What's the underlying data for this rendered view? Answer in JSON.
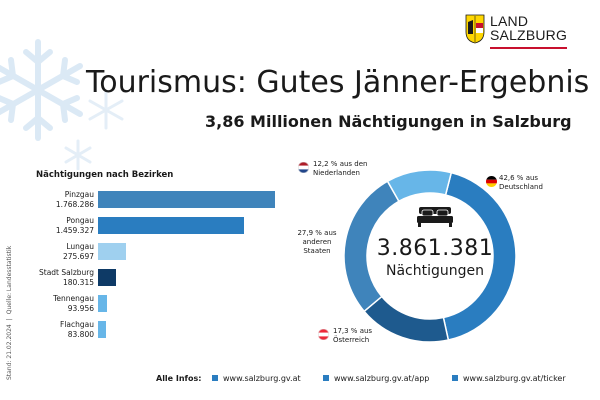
{
  "brand": {
    "line1": "LAND",
    "line2": "SALZBURG"
  },
  "title": "Tourismus: Gutes Jänner-Ergebnis",
  "subtitle": "3,86 Millionen Nächtigungen in Salzburg",
  "source": {
    "stand": "Stand: 21.02.2024",
    "sep": "|",
    "quelle": "Quelle: Landesstatistik"
  },
  "colors": {
    "darkblue": "#1e5a8e",
    "midblue": "#2a7dc0",
    "lightblue": "#9fd0ef",
    "navy": "#0e3a66",
    "skyblue": "#67b6e8",
    "steelblue": "#3f84bb"
  },
  "chart_data": [
    {
      "type": "bar",
      "title": "Nächtigungen nach Bezirken",
      "orientation": "horizontal",
      "categories": [
        "Pinzgau",
        "Pongau",
        "Lungau",
        "Stadt Salzburg",
        "Tennengau",
        "Flachgau"
      ],
      "values": [
        1768286,
        1459327,
        275697,
        180315,
        93956,
        83800
      ],
      "value_labels": [
        "1.768.286",
        "1.459.327",
        "275.697",
        "180.315",
        "93.956",
        "83.800"
      ],
      "colors": [
        "#3f84bb",
        "#2a7dc0",
        "#9fd0ef",
        "#0e3a66",
        "#67b6e8",
        "#67b6e8"
      ]
    },
    {
      "type": "pie",
      "subtype": "donut",
      "center_value": "3.861.381",
      "center_label": "Nächtigungen",
      "slices": [
        {
          "label": "Deutschland",
          "text": "42,6 % aus Deutschland",
          "value": 42.6,
          "color": "#2a7dc0",
          "flag": "de"
        },
        {
          "label": "Österreich",
          "text": "17,3 % aus Österreich",
          "value": 17.3,
          "color": "#1e5a8e",
          "flag": "at"
        },
        {
          "label": "anderen Staaten",
          "text": "27,9 % aus anderen Staaten",
          "value": 27.9,
          "color": "#3f84bb",
          "flag": ""
        },
        {
          "label": "Niederlanden",
          "text": "12,2 % aus den Niederlanden",
          "value": 12.2,
          "color": "#67b6e8",
          "flag": "nl"
        }
      ]
    }
  ],
  "footer": {
    "label": "Alle Infos:",
    "links": [
      "www.salzburg.gv.at",
      "www.salzburg.gv.at/app",
      "www.salzburg.gv.at/ticker"
    ]
  }
}
